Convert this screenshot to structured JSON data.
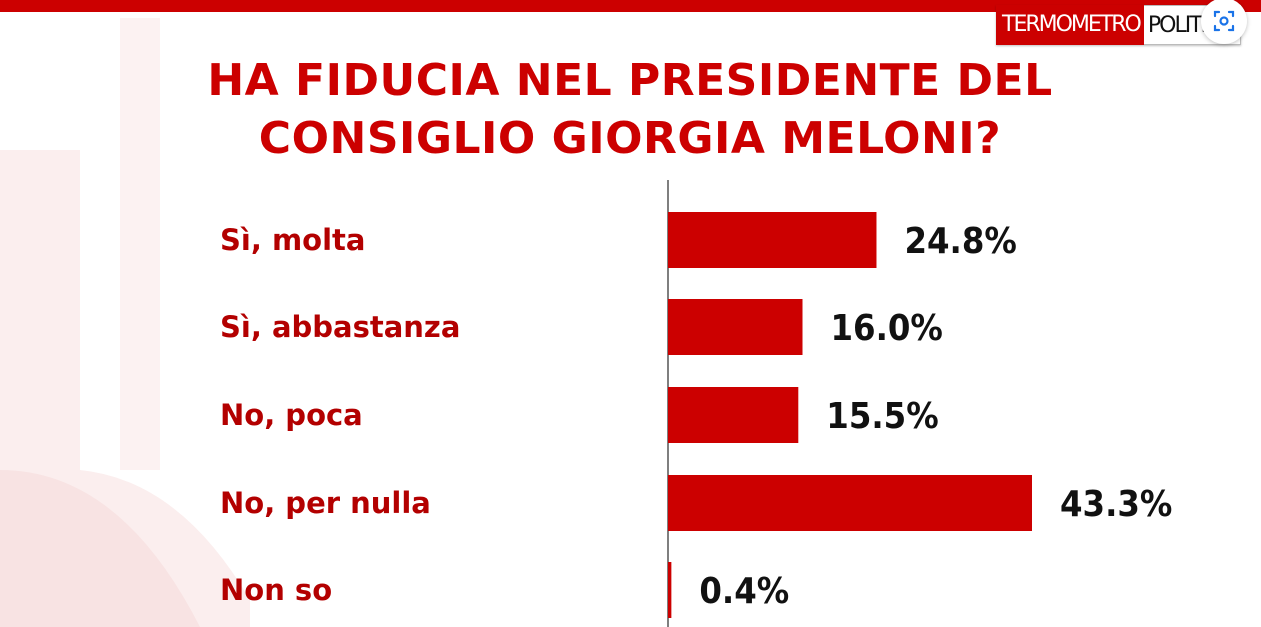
{
  "title": "HA FIDUCIA NEL PRESIDENTE DEL CONSIGLIO GIORGIA MELONI?",
  "logo": {
    "part1": "TERMOMETRO",
    "part2": "POLITICO"
  },
  "colors": {
    "accent": "#cc0000",
    "bar": "#cc0000",
    "value_text": "#111111"
  },
  "icons": {
    "lens": "google-lens-icon"
  },
  "chart_data": {
    "type": "bar",
    "orientation": "horizontal",
    "title": "HA FIDUCIA NEL PRESIDENTE DEL CONSIGLIO GIORGIA MELONI?",
    "categories": [
      "Sì, molta",
      "Sì, abbastanza",
      "No, poca",
      "No, per nulla",
      "Non so"
    ],
    "values": [
      24.8,
      16.0,
      15.5,
      43.3,
      0.4
    ],
    "value_labels": [
      "24.8%",
      "16.0%",
      "15.5%",
      "43.3%",
      "0.4%"
    ],
    "unit": "%",
    "xlim": [
      0,
      45
    ],
    "grid": false,
    "legend": "none"
  }
}
